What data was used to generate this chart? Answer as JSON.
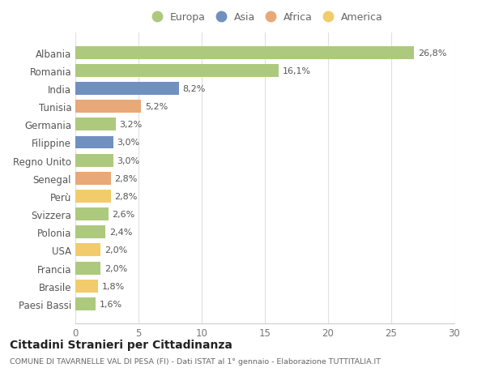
{
  "categories": [
    "Paesi Bassi",
    "Brasile",
    "Francia",
    "USA",
    "Polonia",
    "Svizzera",
    "Perù",
    "Senegal",
    "Regno Unito",
    "Filippine",
    "Germania",
    "Tunisia",
    "India",
    "Romania",
    "Albania"
  ],
  "values": [
    1.6,
    1.8,
    2.0,
    2.0,
    2.4,
    2.6,
    2.8,
    2.8,
    3.0,
    3.0,
    3.2,
    5.2,
    8.2,
    16.1,
    26.8
  ],
  "labels": [
    "1,6%",
    "1,8%",
    "2,0%",
    "2,0%",
    "2,4%",
    "2,6%",
    "2,8%",
    "2,8%",
    "3,0%",
    "3,0%",
    "3,2%",
    "5,2%",
    "8,2%",
    "16,1%",
    "26,8%"
  ],
  "continents": [
    "Europa",
    "America",
    "Europa",
    "America",
    "Europa",
    "Europa",
    "America",
    "Africa",
    "Europa",
    "Asia",
    "Europa",
    "Africa",
    "Asia",
    "Europa",
    "Europa"
  ],
  "colors": {
    "Europa": "#adc97e",
    "Asia": "#7090c0",
    "Africa": "#e8a878",
    "America": "#f2cc6a"
  },
  "title": "Cittadini Stranieri per Cittadinanza",
  "subtitle": "COMUNE DI TAVARNELLE VAL DI PESA (FI) - Dati ISTAT al 1° gennaio - Elaborazione TUTTITALIA.IT",
  "xlim": [
    0,
    30
  ],
  "xticks": [
    0,
    5,
    10,
    15,
    20,
    25,
    30
  ],
  "background_color": "#ffffff",
  "grid_color": "#e0e0e0",
  "legend_order": [
    "Europa",
    "Asia",
    "Africa",
    "America"
  ]
}
